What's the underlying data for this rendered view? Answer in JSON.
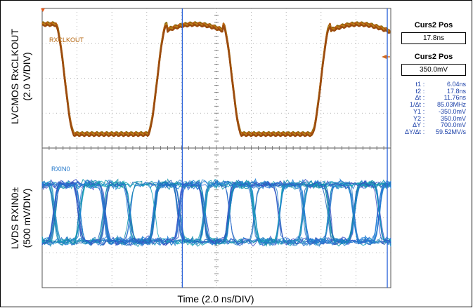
{
  "chart_data": {
    "type": "line",
    "title": "",
    "xlabel": "Time (2.0 ns/DIV)",
    "ylabel_top": [
      "LVCMOS RxCLKOUT",
      "(2.0 V/DIV)"
    ],
    "ylabel_bottom": [
      "LVDS RXIN0±",
      "(500 mV/DIV)"
    ],
    "grid": true,
    "x_divisions": 10,
    "y_divisions": 8,
    "xlim_ns": [
      -2.0,
      18.0
    ],
    "channels": [
      {
        "name": "RXCLKOUT",
        "color": "#b5650d",
        "waveform": "clock",
        "low_div": 3.6,
        "high_div": 0.45,
        "edges_ns": {
          "falls": [
            -0.7,
            8.9
          ],
          "rises": [
            4.6,
            14.0
          ]
        }
      },
      {
        "name": "RXIN0",
        "color": "#1e74c8",
        "waveform": "eye",
        "unit_interval_ns": 1.43
      }
    ],
    "cursors": [
      {
        "name": "t1",
        "time_ns": 6.04
      },
      {
        "name": "t2",
        "time_ns": 17.8
      }
    ],
    "cursor_color": "#2b63d9"
  },
  "panel": {
    "curs_time_title": "Curs2 Pos",
    "curs_time_value": "17.8ns",
    "curs_volt_title": "Curs2 Pos",
    "curs_volt_value": "350.0mV",
    "measurements": [
      {
        "key": "t1",
        "value": "6.04ns"
      },
      {
        "key": "t2",
        "value": "17.8ns"
      },
      {
        "key": "Δt",
        "value": "11.76ns"
      },
      {
        "key": "1/Δt",
        "value": "85.03MHz"
      },
      {
        "key": "Y1",
        "value": "-350.0mV"
      },
      {
        "key": "Y2",
        "value": "350.0mV"
      },
      {
        "key": "ΔY",
        "value": "700.0mV"
      },
      {
        "key": "ΔY/Δt",
        "value": "59.52MV/s"
      }
    ]
  }
}
